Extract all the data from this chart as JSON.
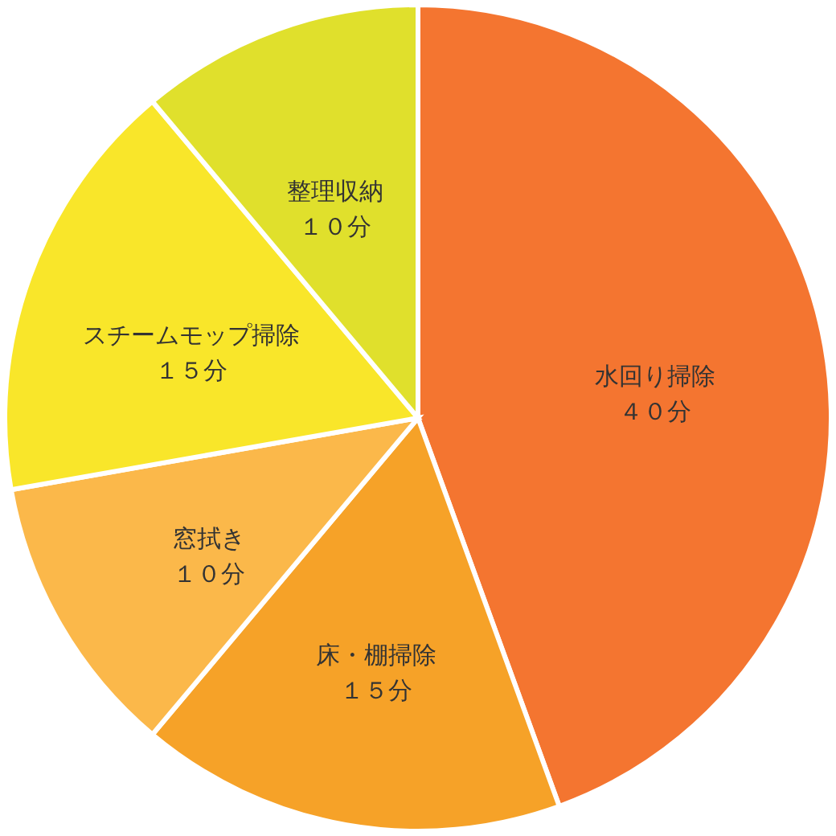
{
  "chart_data": {
    "type": "pie",
    "categories": [
      "水回り掃除",
      "床・棚掃除",
      "窓拭き",
      "スチームモップ掃除",
      "整理収納"
    ],
    "values": [
      40,
      15,
      10,
      15,
      10
    ],
    "value_labels": [
      "４０分",
      "１５分",
      "１０分",
      "１５分",
      "１０分"
    ],
    "colors": [
      "#f47530",
      "#f6a228",
      "#fbb84a",
      "#f9e62a",
      "#e0e02c"
    ],
    "legend": false
  }
}
